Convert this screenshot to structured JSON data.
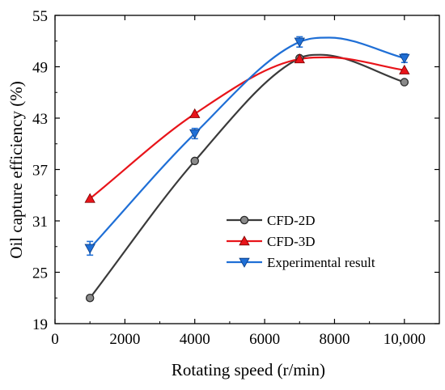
{
  "chart_data": {
    "type": "line",
    "xlabel": "Rotating speed (r/min)",
    "ylabel": "Oil capture efficiency (%)",
    "xlim": [
      0,
      11000
    ],
    "ylim": [
      19,
      55
    ],
    "xticks": [
      0,
      2000,
      4000,
      6000,
      8000,
      10000
    ],
    "xtick_labels": [
      "0",
      "2000",
      "4000",
      "6000",
      "8000",
      "10,000"
    ],
    "yticks": [
      19,
      25,
      31,
      37,
      43,
      49,
      55
    ],
    "ytick_labels": [
      "19",
      "25",
      "31",
      "37",
      "43",
      "49",
      "55"
    ],
    "grid": false,
    "legend_position": "lower-right",
    "series": [
      {
        "name": "CFD-2D",
        "color": "#3a3a3a",
        "marker": "circle",
        "x": [
          1000,
          4000,
          7000,
          10000
        ],
        "y": [
          22.0,
          38.0,
          50.0,
          47.2
        ],
        "smooth_peak": [
          7600,
          50.4
        ]
      },
      {
        "name": "CFD-3D",
        "color": "#e8141a",
        "marker": "triangle-up",
        "x": [
          1000,
          4000,
          7000,
          10000
        ],
        "y": [
          33.6,
          43.5,
          49.9,
          48.6
        ],
        "smooth_peak": [
          7800,
          50.1
        ]
      },
      {
        "name": "Experimental result",
        "color": "#1f6fd6",
        "marker": "triangle-down",
        "x": [
          1000,
          4000,
          7000,
          10000
        ],
        "y": [
          27.8,
          41.2,
          51.9,
          50.0
        ],
        "yerr": [
          0.8,
          0.6,
          0.6,
          0.5
        ],
        "smooth_peak": [
          7850,
          52.4
        ]
      }
    ]
  }
}
